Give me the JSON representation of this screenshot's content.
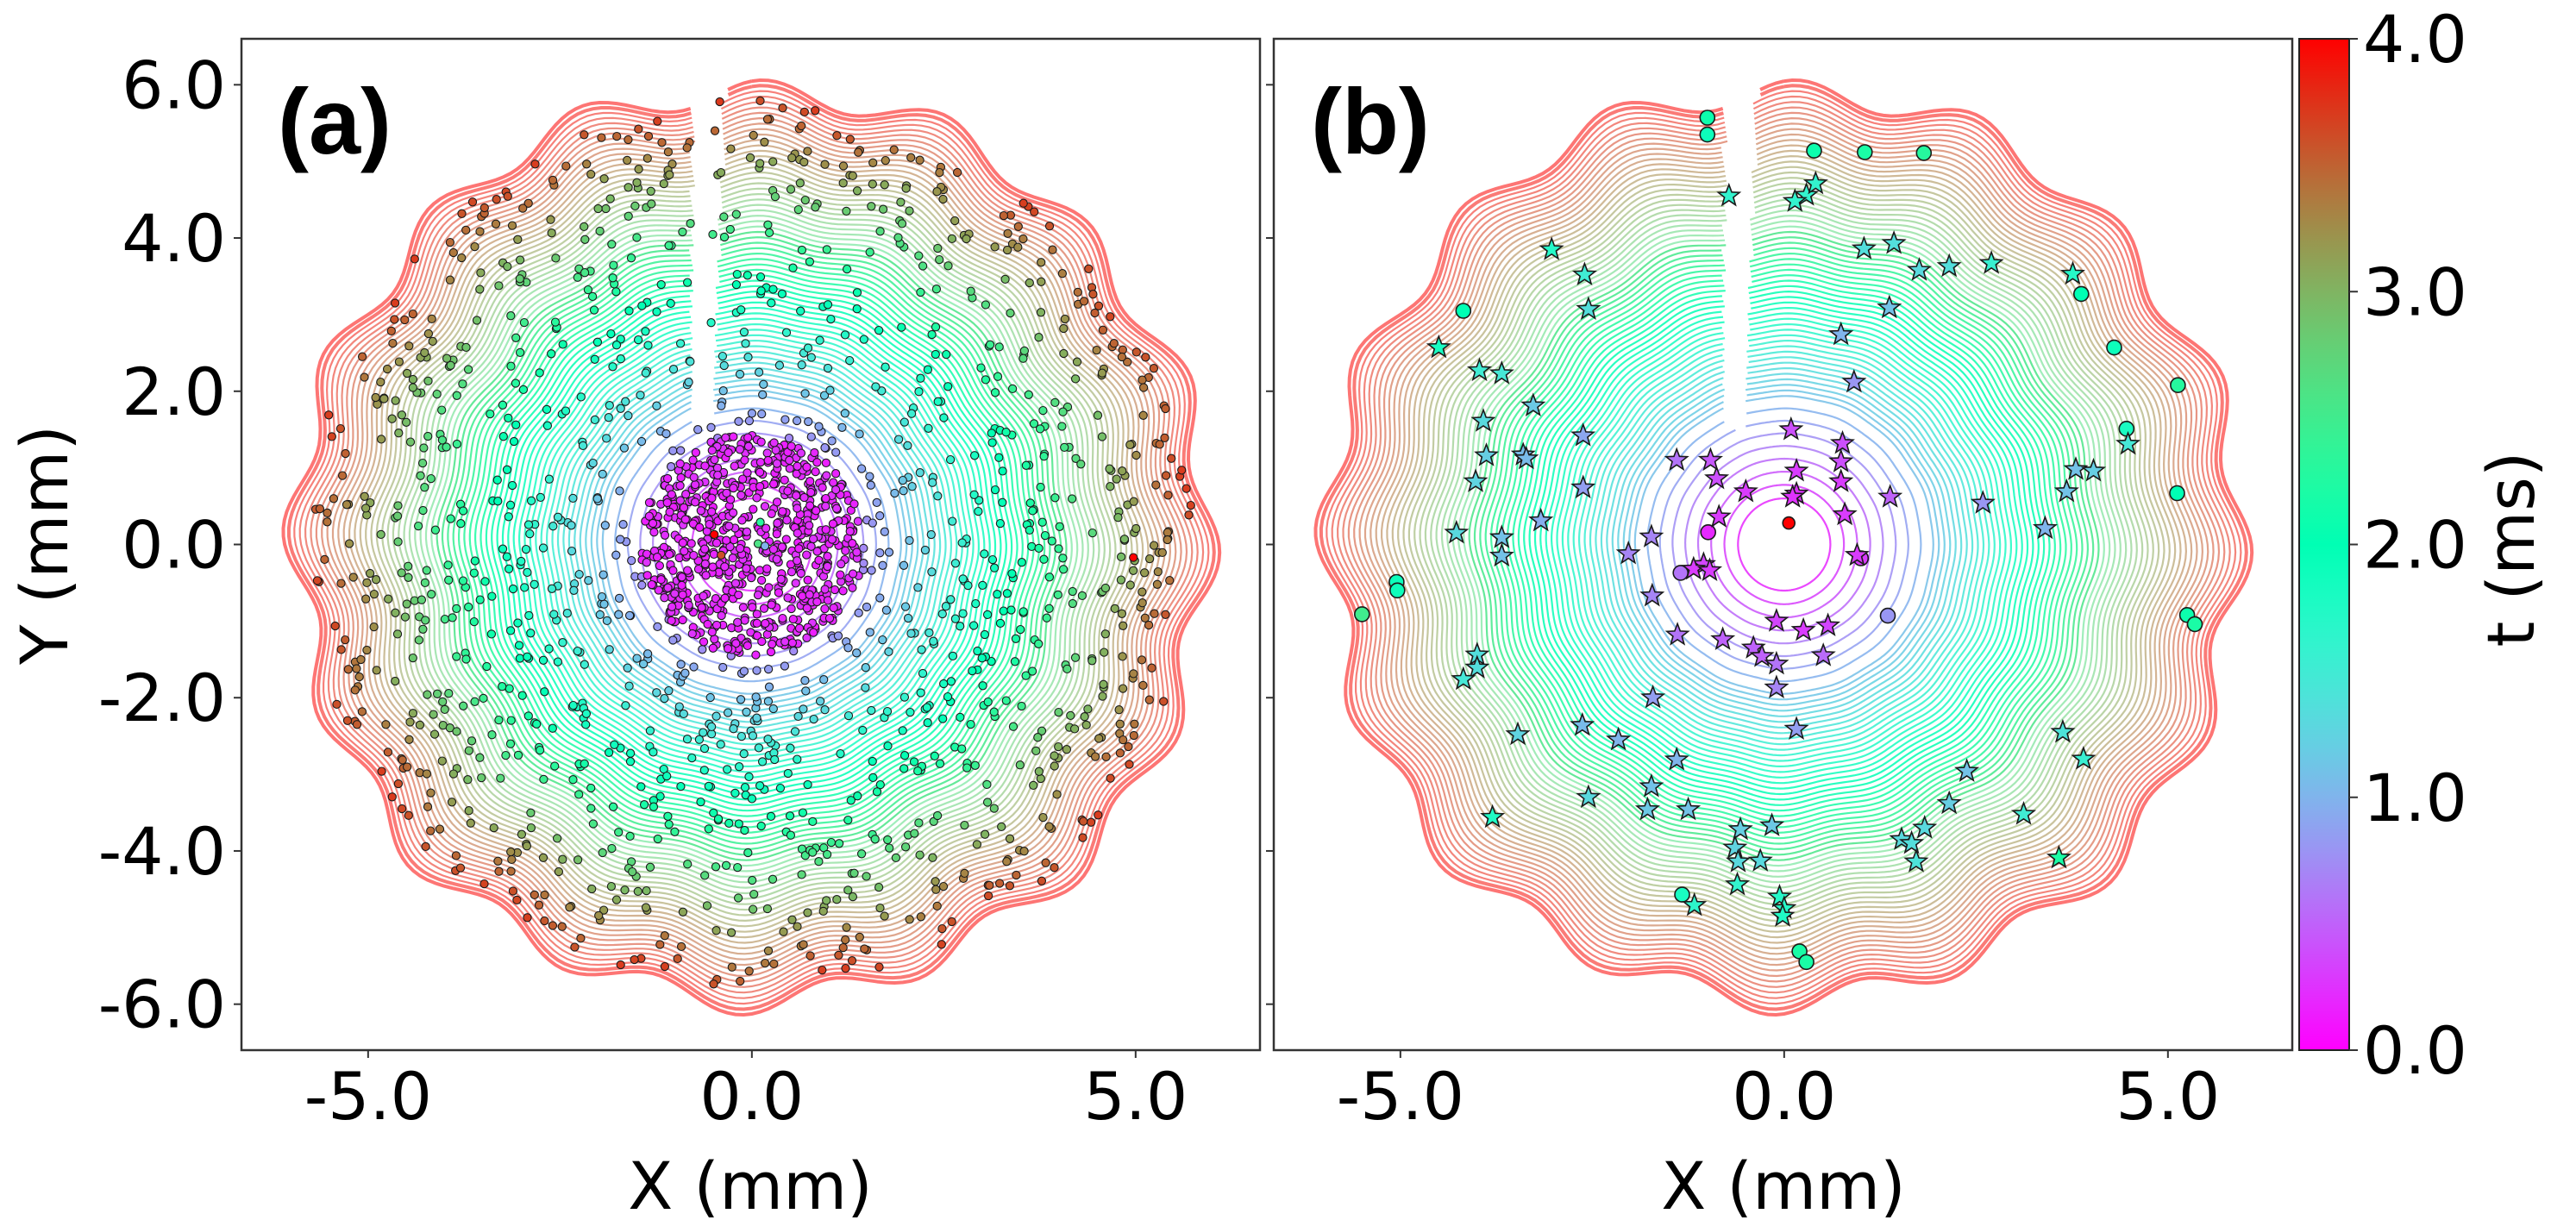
{
  "chart_data": {
    "type": "scatter",
    "figure": "Two-panel arrival-time contour map with scattered nucleation points and shared colorbar",
    "colormap": "rainbow",
    "colorbar": {
      "label": "t (ms)",
      "range": [
        0.0,
        4.0
      ],
      "ticks": [
        "0.0",
        "1.0",
        "2.0",
        "3.0",
        "4.0"
      ],
      "tick_values": [
        0.0,
        1.0,
        2.0,
        3.0,
        4.0
      ]
    },
    "contours": {
      "levels_range_ms": [
        0.0,
        4.0
      ],
      "level_step_ms": 0.05,
      "front_radius_mm_at_t_max": 5.95,
      "front_undulation_mm": 0.18,
      "front_lobes": 16,
      "branch_cut_x_mm": -0.65
    },
    "panels": [
      {
        "id": "a",
        "tag": "(a)",
        "xlabel": "X (mm)",
        "ylabel": "Y (mm)",
        "xlim": [
          -6.65,
          6.62
        ],
        "ylim": [
          -6.6,
          6.6
        ],
        "xticks": [
          -5.0,
          0.0,
          5.0
        ],
        "xtick_labels": [
          "-5.0",
          "0.0",
          "5.0"
        ],
        "yticks": [
          -6.0,
          -4.0,
          -2.0,
          0.0,
          2.0,
          4.0,
          6.0
        ],
        "ytick_labels": [
          "-6.0",
          "-4.0",
          "-2.0",
          "0.0",
          "2.0",
          "4.0",
          "6.0"
        ],
        "marker": "circle",
        "point_cloud": {
          "description": "Dense uniform cluster inside r<1.45 mm (t≈0.1–0.3 ms) plus ~1400 scattered points out to r≈5.8 mm colored by arrival time",
          "inner_cluster": {
            "count": 700,
            "radius_mm": 1.45
          },
          "outer_scatter": {
            "count": 1400,
            "radius_range_mm": [
              1.45,
              5.8
            ]
          }
        },
        "highlighted_points": [
          {
            "x": 4.97,
            "y": -0.17,
            "t": 4.0
          },
          {
            "x": -0.49,
            "y": 0.13,
            "t": 4.0
          },
          {
            "x": -0.4,
            "y": -0.14,
            "t": 3.6
          },
          {
            "x": 0.11,
            "y": 0.29,
            "t": 2.3
          },
          {
            "x": 0.08,
            "y": 0.01,
            "t": 2.6
          },
          {
            "x": 0.17,
            "y": -0.02,
            "t": 1.0
          }
        ]
      },
      {
        "id": "b",
        "tag": "(b)",
        "xlabel": "X (mm)",
        "ylabel": "",
        "xlim": [
          -6.65,
          6.62
        ],
        "ylim": [
          -6.6,
          6.6
        ],
        "xticks": [
          -5.0,
          0.0,
          5.0
        ],
        "xtick_labels": [
          "-5.0",
          "0.0",
          "5.0"
        ],
        "yticks": [
          -6.0,
          -4.0,
          -2.0,
          0.0,
          2.0,
          4.0,
          6.0
        ],
        "ytick_labels": [],
        "series": [
          {
            "name": "circles",
            "marker": "circle",
            "points": [
              {
                "x": 0.06,
                "y": 0.28,
                "t": 4.0
              },
              {
                "x": -1.0,
                "y": 5.57,
                "t": 2.1
              },
              {
                "x": -1.0,
                "y": 5.35,
                "t": 1.9
              },
              {
                "x": 0.39,
                "y": 5.14,
                "t": 2.1
              },
              {
                "x": 1.05,
                "y": 5.12,
                "t": 2.2
              },
              {
                "x": 1.82,
                "y": 5.11,
                "t": 2.3
              },
              {
                "x": -4.18,
                "y": 3.05,
                "t": 2.0
              },
              {
                "x": 3.87,
                "y": 3.27,
                "t": 2.0
              },
              {
                "x": 4.3,
                "y": 2.57,
                "t": 1.9
              },
              {
                "x": 5.13,
                "y": 2.08,
                "t": 2.3
              },
              {
                "x": 4.46,
                "y": 1.51,
                "t": 1.8
              },
              {
                "x": 5.12,
                "y": 0.67,
                "t": 2.0
              },
              {
                "x": -5.05,
                "y": -0.49,
                "t": 1.9
              },
              {
                "x": -5.04,
                "y": -0.6,
                "t": 1.9
              },
              {
                "x": -5.5,
                "y": -0.91,
                "t": 2.5
              },
              {
                "x": 5.25,
                "y": -0.92,
                "t": 2.1
              },
              {
                "x": 5.35,
                "y": -1.04,
                "t": 2.2
              },
              {
                "x": -1.33,
                "y": -4.57,
                "t": 1.8
              },
              {
                "x": 0.2,
                "y": -5.31,
                "t": 2.2
              },
              {
                "x": 0.29,
                "y": -5.45,
                "t": 2.2
              },
              {
                "x": -0.99,
                "y": 0.16,
                "t": 0.2
              },
              {
                "x": -1.35,
                "y": -0.37,
                "t": 0.6
              },
              {
                "x": 1.35,
                "y": -0.93,
                "t": 0.8
              },
              {
                "x": 1.0,
                "y": -0.18,
                "t": 0.3
              }
            ]
          },
          {
            "name": "stars",
            "marker": "star",
            "points": [
              {
                "x": 0.09,
                "y": 1.5,
                "t": 0.4
              },
              {
                "x": 0.76,
                "y": 1.32,
                "t": 0.4
              },
              {
                "x": 0.74,
                "y": 1.08,
                "t": 0.4
              },
              {
                "x": 0.16,
                "y": 0.96,
                "t": 0.3
              },
              {
                "x": 0.16,
                "y": 0.66,
                "t": 0.25
              },
              {
                "x": 0.11,
                "y": 0.62,
                "t": 0.25
              },
              {
                "x": -0.5,
                "y": 0.69,
                "t": 0.3
              },
              {
                "x": 0.74,
                "y": 0.82,
                "t": 0.3
              },
              {
                "x": 0.79,
                "y": 0.39,
                "t": 0.3
              },
              {
                "x": 0.95,
                "y": -0.14,
                "t": 0.3
              },
              {
                "x": -0.88,
                "y": 0.86,
                "t": 0.4
              },
              {
                "x": -0.96,
                "y": 1.1,
                "t": 0.45
              },
              {
                "x": -1.4,
                "y": 1.1,
                "t": 0.6
              },
              {
                "x": -0.85,
                "y": 0.36,
                "t": 0.3
              },
              {
                "x": -1.05,
                "y": -0.26,
                "t": 0.35
              },
              {
                "x": -1.18,
                "y": -0.32,
                "t": 0.3
              },
              {
                "x": -0.97,
                "y": -0.34,
                "t": 0.3
              },
              {
                "x": -1.73,
                "y": 0.1,
                "t": 0.7
              },
              {
                "x": -1.72,
                "y": -0.67,
                "t": 0.7
              },
              {
                "x": -1.39,
                "y": -1.18,
                "t": 0.6
              },
              {
                "x": -0.8,
                "y": -1.24,
                "t": 0.5
              },
              {
                "x": -0.4,
                "y": -1.35,
                "t": 0.5
              },
              {
                "x": -0.29,
                "y": -1.46,
                "t": 0.5
              },
              {
                "x": -0.1,
                "y": -1.56,
                "t": 0.6
              },
              {
                "x": -0.1,
                "y": -1.87,
                "t": 0.7
              },
              {
                "x": -0.1,
                "y": -1.0,
                "t": 0.35
              },
              {
                "x": 0.25,
                "y": -1.12,
                "t": 0.3
              },
              {
                "x": 0.57,
                "y": -1.06,
                "t": 0.35
              },
              {
                "x": 0.51,
                "y": -1.45,
                "t": 0.55
              },
              {
                "x": 0.16,
                "y": -2.41,
                "t": 0.85
              },
              {
                "x": -0.72,
                "y": 4.55,
                "t": 1.6
              },
              {
                "x": 0.29,
                "y": 4.56,
                "t": 1.6
              },
              {
                "x": 0.14,
                "y": 4.48,
                "t": 1.6
              },
              {
                "x": 0.41,
                "y": 4.71,
                "t": 1.6
              },
              {
                "x": 0.74,
                "y": 2.74,
                "t": 1.0
              },
              {
                "x": 1.04,
                "y": 3.86,
                "t": 1.35
              },
              {
                "x": 1.37,
                "y": 3.09,
                "t": 1.1
              },
              {
                "x": 1.76,
                "y": 3.58,
                "t": 1.3
              },
              {
                "x": 2.15,
                "y": 3.63,
                "t": 1.35
              },
              {
                "x": 2.7,
                "y": 3.67,
                "t": 1.55
              },
              {
                "x": 1.43,
                "y": 3.93,
                "t": 1.35
              },
              {
                "x": -3.03,
                "y": 3.85,
                "t": 1.7
              },
              {
                "x": -2.6,
                "y": 3.52,
                "t": 1.5
              },
              {
                "x": -2.55,
                "y": 3.07,
                "t": 1.35
              },
              {
                "x": -4.5,
                "y": 2.57,
                "t": 1.8
              },
              {
                "x": -3.97,
                "y": 2.27,
                "t": 1.5
              },
              {
                "x": -3.68,
                "y": 2.23,
                "t": 1.45
              },
              {
                "x": -3.27,
                "y": 1.81,
                "t": 1.15
              },
              {
                "x": -3.92,
                "y": 1.61,
                "t": 1.3
              },
              {
                "x": -3.88,
                "y": 1.16,
                "t": 1.2
              },
              {
                "x": -3.4,
                "y": 1.17,
                "t": 1.05
              },
              {
                "x": -3.36,
                "y": 1.12,
                "t": 1.05
              },
              {
                "x": -4.02,
                "y": 0.82,
                "t": 1.25
              },
              {
                "x": -2.62,
                "y": 1.42,
                "t": 0.9
              },
              {
                "x": -2.62,
                "y": 0.74,
                "t": 0.85
              },
              {
                "x": -3.17,
                "y": 0.31,
                "t": 0.95
              },
              {
                "x": -4.27,
                "y": 0.15,
                "t": 1.3
              },
              {
                "x": -3.68,
                "y": 0.09,
                "t": 1.1
              },
              {
                "x": -3.68,
                "y": -0.15,
                "t": 1.1
              },
              {
                "x": -2.03,
                "y": -0.12,
                "t": 0.7
              },
              {
                "x": -4.0,
                "y": -1.44,
                "t": 1.35
              },
              {
                "x": -4.0,
                "y": -1.61,
                "t": 1.35
              },
              {
                "x": -4.18,
                "y": -1.76,
                "t": 1.45
              },
              {
                "x": -2.63,
                "y": -2.36,
                "t": 1.05
              },
              {
                "x": -1.71,
                "y": -2.0,
                "t": 0.85
              },
              {
                "x": -2.16,
                "y": -2.55,
                "t": 1.0
              },
              {
                "x": -3.47,
                "y": -2.48,
                "t": 1.25
              },
              {
                "x": -3.8,
                "y": -3.56,
                "t": 1.75
              },
              {
                "x": -2.55,
                "y": -3.3,
                "t": 1.3
              },
              {
                "x": -1.4,
                "y": -2.81,
                "t": 1.0
              },
              {
                "x": -1.73,
                "y": -3.16,
                "t": 1.1
              },
              {
                "x": -1.78,
                "y": -3.46,
                "t": 1.15
              },
              {
                "x": -1.25,
                "y": -3.46,
                "t": 1.1
              },
              {
                "x": -0.57,
                "y": -3.72,
                "t": 1.2
              },
              {
                "x": -0.64,
                "y": -3.96,
                "t": 1.25
              },
              {
                "x": -0.6,
                "y": -4.14,
                "t": 1.3
              },
              {
                "x": -0.31,
                "y": -4.13,
                "t": 1.3
              },
              {
                "x": -0.16,
                "y": -3.67,
                "t": 1.15
              },
              {
                "x": -1.17,
                "y": -4.71,
                "t": 1.65
              },
              {
                "x": -0.61,
                "y": -4.44,
                "t": 1.6
              },
              {
                "x": -0.06,
                "y": -4.6,
                "t": 1.7
              },
              {
                "x": 0.0,
                "y": -4.75,
                "t": 1.7
              },
              {
                "x": -0.02,
                "y": -4.85,
                "t": 1.75
              },
              {
                "x": 1.53,
                "y": -3.85,
                "t": 1.3
              },
              {
                "x": 1.66,
                "y": -3.9,
                "t": 1.35
              },
              {
                "x": 1.72,
                "y": -4.14,
                "t": 1.4
              },
              {
                "x": 1.83,
                "y": -3.7,
                "t": 1.3
              },
              {
                "x": 2.15,
                "y": -3.38,
                "t": 1.2
              },
              {
                "x": 2.38,
                "y": -2.96,
                "t": 1.1
              },
              {
                "x": 3.12,
                "y": -3.52,
                "t": 1.5
              },
              {
                "x": 3.63,
                "y": -2.45,
                "t": 1.4
              },
              {
                "x": 3.9,
                "y": -2.8,
                "t": 1.55
              },
              {
                "x": 3.58,
                "y": -4.09,
                "t": 2.2
              },
              {
                "x": 3.4,
                "y": 0.21,
                "t": 1.0
              },
              {
                "x": 2.59,
                "y": 0.54,
                "t": 0.8
              },
              {
                "x": 3.68,
                "y": 0.69,
                "t": 1.1
              },
              {
                "x": 3.8,
                "y": 0.98,
                "t": 1.1
              },
              {
                "x": 4.03,
                "y": 0.96,
                "t": 1.2
              },
              {
                "x": 4.48,
                "y": 1.31,
                "t": 1.45
              },
              {
                "x": 3.76,
                "y": 3.53,
                "t": 1.7
              },
              {
                "x": 1.38,
                "y": 0.62,
                "t": 0.5
              },
              {
                "x": 0.91,
                "y": 2.12,
                "t": 0.8
              }
            ]
          }
        ]
      }
    ]
  }
}
